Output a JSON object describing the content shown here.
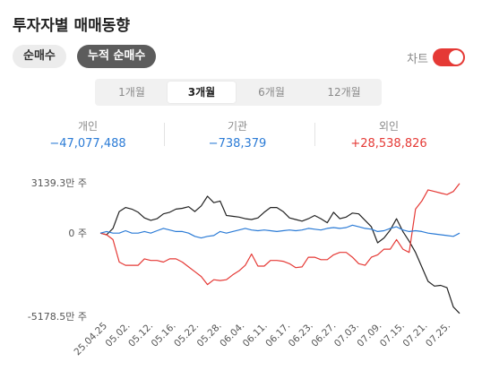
{
  "title": "투자자별 매매동향",
  "tabs": [
    {
      "label": "순매수",
      "selected": false
    },
    {
      "label": "누적 순매수",
      "selected": true
    }
  ],
  "chart_toggle": {
    "label": "차트",
    "on": true
  },
  "periods": [
    {
      "label": "1개월",
      "selected": false
    },
    {
      "label": "3개월",
      "selected": true
    },
    {
      "label": "6개월",
      "selected": false
    },
    {
      "label": "12개월",
      "selected": false
    }
  ],
  "stats": [
    {
      "label": "개인",
      "value": "−47,077,488",
      "color": "#2b7bd6"
    },
    {
      "label": "기관",
      "value": "−738,379",
      "color": "#2b7bd6"
    },
    {
      "label": "외인",
      "value": "+28,538,826",
      "color": "#e53935"
    }
  ],
  "colors": {
    "individual": "#222222",
    "institution": "#2b7bd6",
    "foreign": "#e53935",
    "accent": "#e53935"
  },
  "chart_data": {
    "type": "line",
    "y_ticks": [
      {
        "label": "3139.3만 주",
        "value": 3139.3
      },
      {
        "label": "0 주",
        "value": 0
      },
      {
        "label": "-5178.5만 주",
        "value": -5178.5
      }
    ],
    "ylim": [
      -5178.5,
      3139.3
    ],
    "x_labels": [
      "25.04.25",
      "05.02.",
      "05.12.",
      "05.16.",
      "05.22.",
      "05.28.",
      "06.04.",
      "06.11.",
      "06.17.",
      "06.23.",
      "06.27.",
      "07.03.",
      "07.09.",
      "07.15.",
      "07.21.",
      "07.25."
    ],
    "series": [
      {
        "key": "individual",
        "color": "#222222",
        "values": [
          0,
          -100,
          300,
          1350,
          1600,
          1500,
          1300,
          950,
          800,
          900,
          1200,
          1300,
          1500,
          1550,
          1650,
          1350,
          1700,
          2300,
          1900,
          2000,
          1100,
          1050,
          1000,
          900,
          850,
          950,
          1300,
          1600,
          1600,
          1350,
          950,
          850,
          750,
          900,
          1100,
          900,
          650,
          1300,
          900,
          1000,
          1250,
          1200,
          800,
          400,
          -600,
          -300,
          200,
          900,
          100,
          -500,
          -1200,
          -2100,
          -3000,
          -3300,
          -3250,
          -3400,
          -4600,
          -5000
        ]
      },
      {
        "key": "foreign",
        "color": "#e53935",
        "values": [
          0,
          -100,
          -400,
          -1800,
          -2000,
          -2000,
          -2000,
          -1600,
          -1700,
          -1700,
          -1800,
          -1600,
          -1600,
          -1800,
          -2100,
          -2400,
          -2700,
          -3200,
          -2900,
          -2950,
          -2900,
          -2600,
          -2350,
          -2000,
          -1300,
          -2050,
          -2050,
          -1700,
          -1700,
          -1750,
          -1900,
          -2150,
          -2100,
          -1500,
          -1500,
          -1650,
          -1650,
          -1350,
          -1200,
          -1200,
          -1500,
          -1900,
          -2000,
          -1500,
          -1350,
          -1000,
          -1000,
          -400,
          -1000,
          -1200,
          1500,
          2000,
          2700,
          2600,
          2500,
          2400,
          2600,
          3100
        ]
      },
      {
        "key": "institution",
        "color": "#2b7bd6",
        "values": [
          0,
          100,
          0,
          0,
          150,
          0,
          0,
          100,
          0,
          150,
          300,
          200,
          100,
          100,
          0,
          -200,
          -300,
          -200,
          -150,
          100,
          0,
          100,
          200,
          300,
          200,
          150,
          200,
          150,
          100,
          150,
          200,
          150,
          200,
          300,
          250,
          200,
          300,
          350,
          300,
          350,
          500,
          400,
          300,
          250,
          100,
          150,
          300,
          400,
          200,
          100,
          150,
          100,
          0,
          -50,
          -100,
          -150,
          -200,
          0
        ]
      }
    ]
  }
}
